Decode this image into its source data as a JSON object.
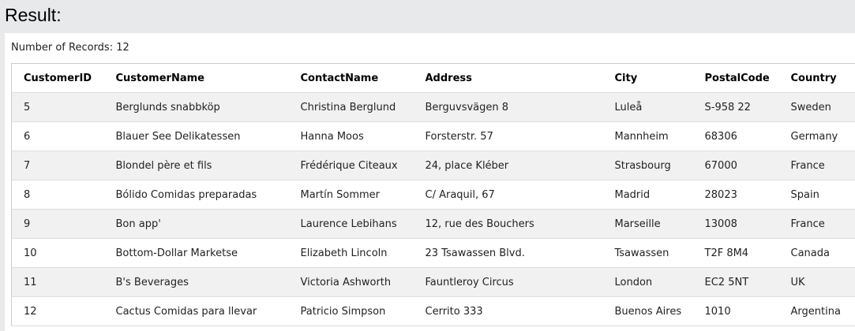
{
  "title": "Result:",
  "records_label": "Number of Records: 12",
  "columns": [
    "CustomerID",
    "CustomerName",
    "ContactName",
    "Address",
    "City",
    "PostalCode",
    "Country"
  ],
  "rows": [
    [
      "5",
      "Berglunds snabbköp",
      "Christina Berglund",
      "Berguvsvägen 8",
      "Luleå",
      "S-958 22",
      "Sweden"
    ],
    [
      "6",
      "Blauer See Delikatessen",
      "Hanna Moos",
      "Forsterstr. 57",
      "Mannheim",
      "68306",
      "Germany"
    ],
    [
      "7",
      "Blondel père et fils",
      "Frédérique Citeaux",
      "24, place Kléber",
      "Strasbourg",
      "67000",
      "France"
    ],
    [
      "8",
      "Bólido Comidas preparadas",
      "Martín Sommer",
      "C/ Araquil, 67",
      "Madrid",
      "28023",
      "Spain"
    ],
    [
      "9",
      "Bon app'",
      "Laurence Lebihans",
      "12, rue des Bouchers",
      "Marseille",
      "13008",
      "France"
    ],
    [
      "10",
      "Bottom-Dollar Marketse",
      "Elizabeth Lincoln",
      "23 Tsawassen Blvd.",
      "Tsawassen",
      "T2F 8M4",
      "Canada"
    ],
    [
      "11",
      "B's Beverages",
      "Victoria Ashworth",
      "Fauntleroy Circus",
      "London",
      "EC2 5NT",
      "UK"
    ],
    [
      "12",
      "Cactus Comidas para llevar",
      "Patricio Simpson",
      "Cerrito 333",
      "Buenos Aires",
      "1010",
      "Argentina"
    ]
  ]
}
